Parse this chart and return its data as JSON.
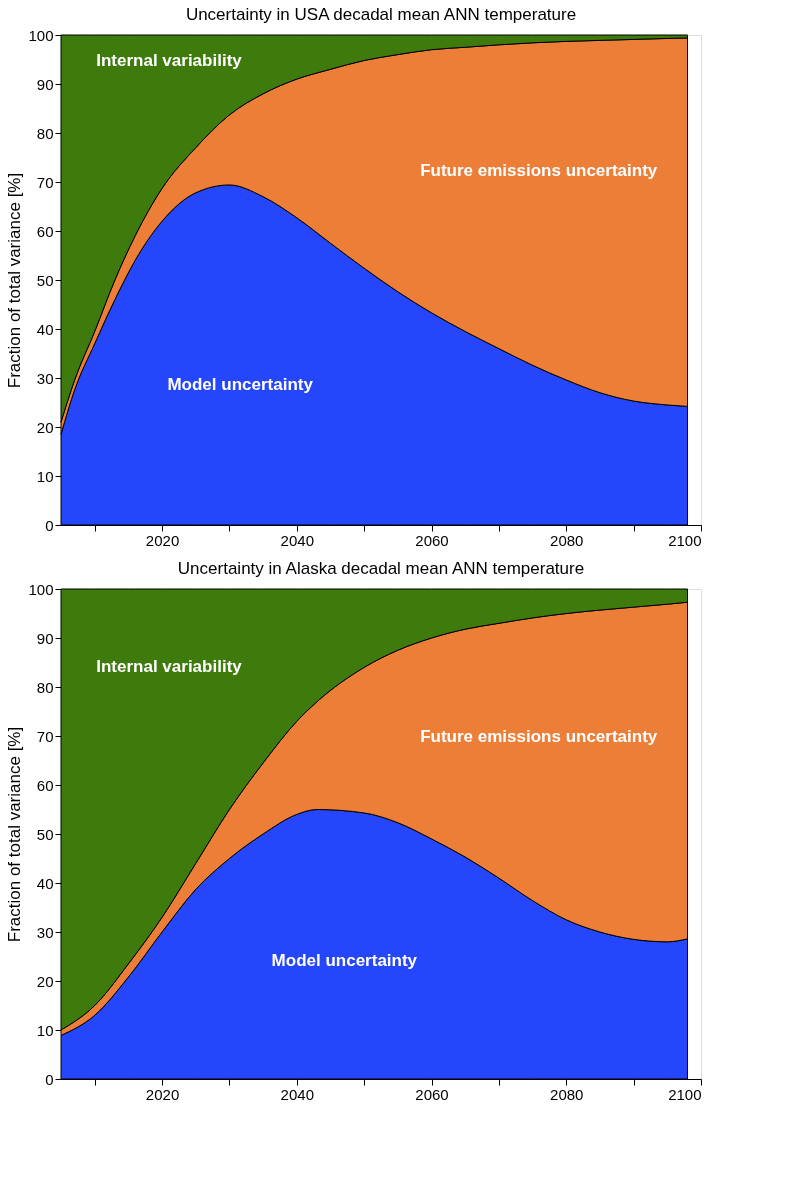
{
  "chart_data": [
    {
      "type": "area",
      "stacked": true,
      "title": "Uncertainty in USA decadal mean ANN temperature",
      "ylabel": "Fraction of total variance  [%]",
      "grid": false,
      "legend": false,
      "x": [
        2005,
        2007,
        2010,
        2013,
        2016,
        2020,
        2025,
        2030,
        2035,
        2040,
        2045,
        2050,
        2055,
        2060,
        2065,
        2070,
        2075,
        2080,
        2085,
        2090,
        2095,
        2098
      ],
      "series": [
        {
          "name": "Model uncertainty",
          "color": "#2546fb",
          "values": [
            18.5,
            27.5,
            37,
            46,
            54,
            62,
            67.8,
            69.4,
            67,
            62.7,
            57.5,
            52.4,
            47.6,
            43.3,
            39.5,
            36,
            32.6,
            29.6,
            27,
            25.3,
            24.5,
            24.2
          ]
        },
        {
          "name": "Future emissions uncertainty",
          "color": "#ec7e37",
          "values": [
            2.5,
            2,
            2.5,
            4,
            5,
            6.7,
            9.2,
            14.3,
            21,
            28.3,
            35.5,
            42.4,
            48.4,
            53.7,
            58,
            62,
            65.8,
            69.1,
            71.9,
            73.8,
            74.8,
            75.2
          ]
        },
        {
          "name": "Internal variability",
          "color": "#3f7a0c",
          "values": [
            79,
            70.5,
            60.5,
            50,
            41,
            31.3,
            23,
            16.3,
            12,
            9,
            7,
            5.2,
            4,
            3,
            2.5,
            2,
            1.6,
            1.3,
            1.1,
            0.9,
            0.7,
            0.6
          ]
        }
      ],
      "xlim": [
        2005,
        2100
      ],
      "xticks": [
        {
          "value": 2010,
          "label": null
        },
        2020,
        {
          "value": 2030,
          "label": null
        },
        2040,
        {
          "value": 2050,
          "label": null
        },
        2060,
        {
          "value": 2070,
          "label": null
        },
        2080,
        {
          "value": 2090,
          "label": null
        },
        2100
      ],
      "ylim": [
        0,
        100
      ],
      "yticks": [
        0,
        10,
        20,
        30,
        40,
        50,
        60,
        70,
        80,
        90,
        100
      ]
    },
    {
      "type": "area",
      "stacked": true,
      "title": "Uncertainty in Alaska decadal mean ANN temperature",
      "ylabel": "Fraction of total variance  [%]",
      "grid": false,
      "legend": false,
      "x": [
        2005,
        2010,
        2015,
        2020,
        2025,
        2030,
        2035,
        2040,
        2043,
        2050,
        2055,
        2060,
        2065,
        2070,
        2075,
        2080,
        2085,
        2090,
        2095,
        2098
      ],
      "series": [
        {
          "name": "Model uncertainty",
          "color": "#2546fb",
          "values": [
            8.9,
            13,
            20.8,
            30,
            38.7,
            45,
            50,
            54,
            55,
            54.3,
            52.3,
            49,
            45.3,
            41,
            36.4,
            32.5,
            30,
            28.5,
            28,
            28.6
          ]
        },
        {
          "name": "Future emissions uncertainty",
          "color": "#ec7e37",
          "values": [
            1.1,
            2,
            2.7,
            3,
            5.3,
            10,
            14.5,
            19,
            22,
            29.7,
            35.2,
            41,
            46.5,
            52,
            57.7,
            62.5,
            65.7,
            67.8,
            68.9,
            68.7
          ]
        },
        {
          "name": "Internal variability",
          "color": "#3f7a0c",
          "values": [
            90,
            85,
            76.5,
            67,
            56,
            45,
            35.5,
            27,
            23,
            16,
            12.5,
            10,
            8.2,
            7,
            5.9,
            5,
            4.3,
            3.7,
            3.1,
            2.7
          ]
        }
      ],
      "xlim": [
        2005,
        2100
      ],
      "xticks": [
        {
          "value": 2010,
          "label": null
        },
        2020,
        {
          "value": 2030,
          "label": null
        },
        2040,
        {
          "value": 2050,
          "label": null
        },
        2060,
        {
          "value": 2070,
          "label": null
        },
        2080,
        {
          "value": 2090,
          "label": null
        },
        2100
      ],
      "ylim": [
        0,
        100
      ],
      "yticks": [
        0,
        10,
        20,
        30,
        40,
        50,
        60,
        70,
        80,
        90,
        100
      ]
    }
  ]
}
